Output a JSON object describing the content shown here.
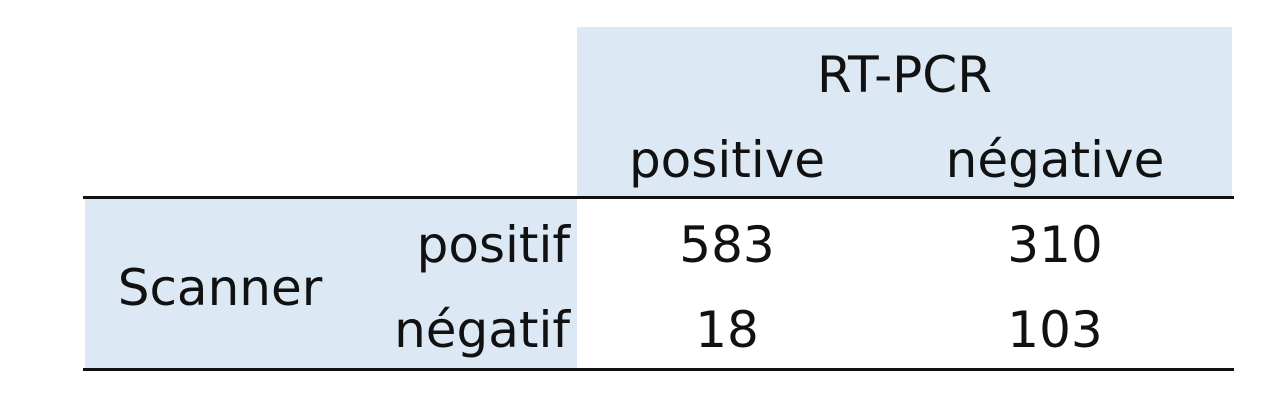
{
  "colors": {
    "header_fill": "#dce9f5",
    "text": "#111111",
    "rule": "#111111"
  },
  "table": {
    "column_group": "RT-PCR",
    "column_headers": [
      "positive",
      "négative"
    ],
    "row_group": "Scanner",
    "rows": [
      {
        "label": "positif",
        "values": [
          "583",
          "310"
        ]
      },
      {
        "label": "négatif",
        "values": [
          "18",
          "103"
        ]
      }
    ]
  }
}
